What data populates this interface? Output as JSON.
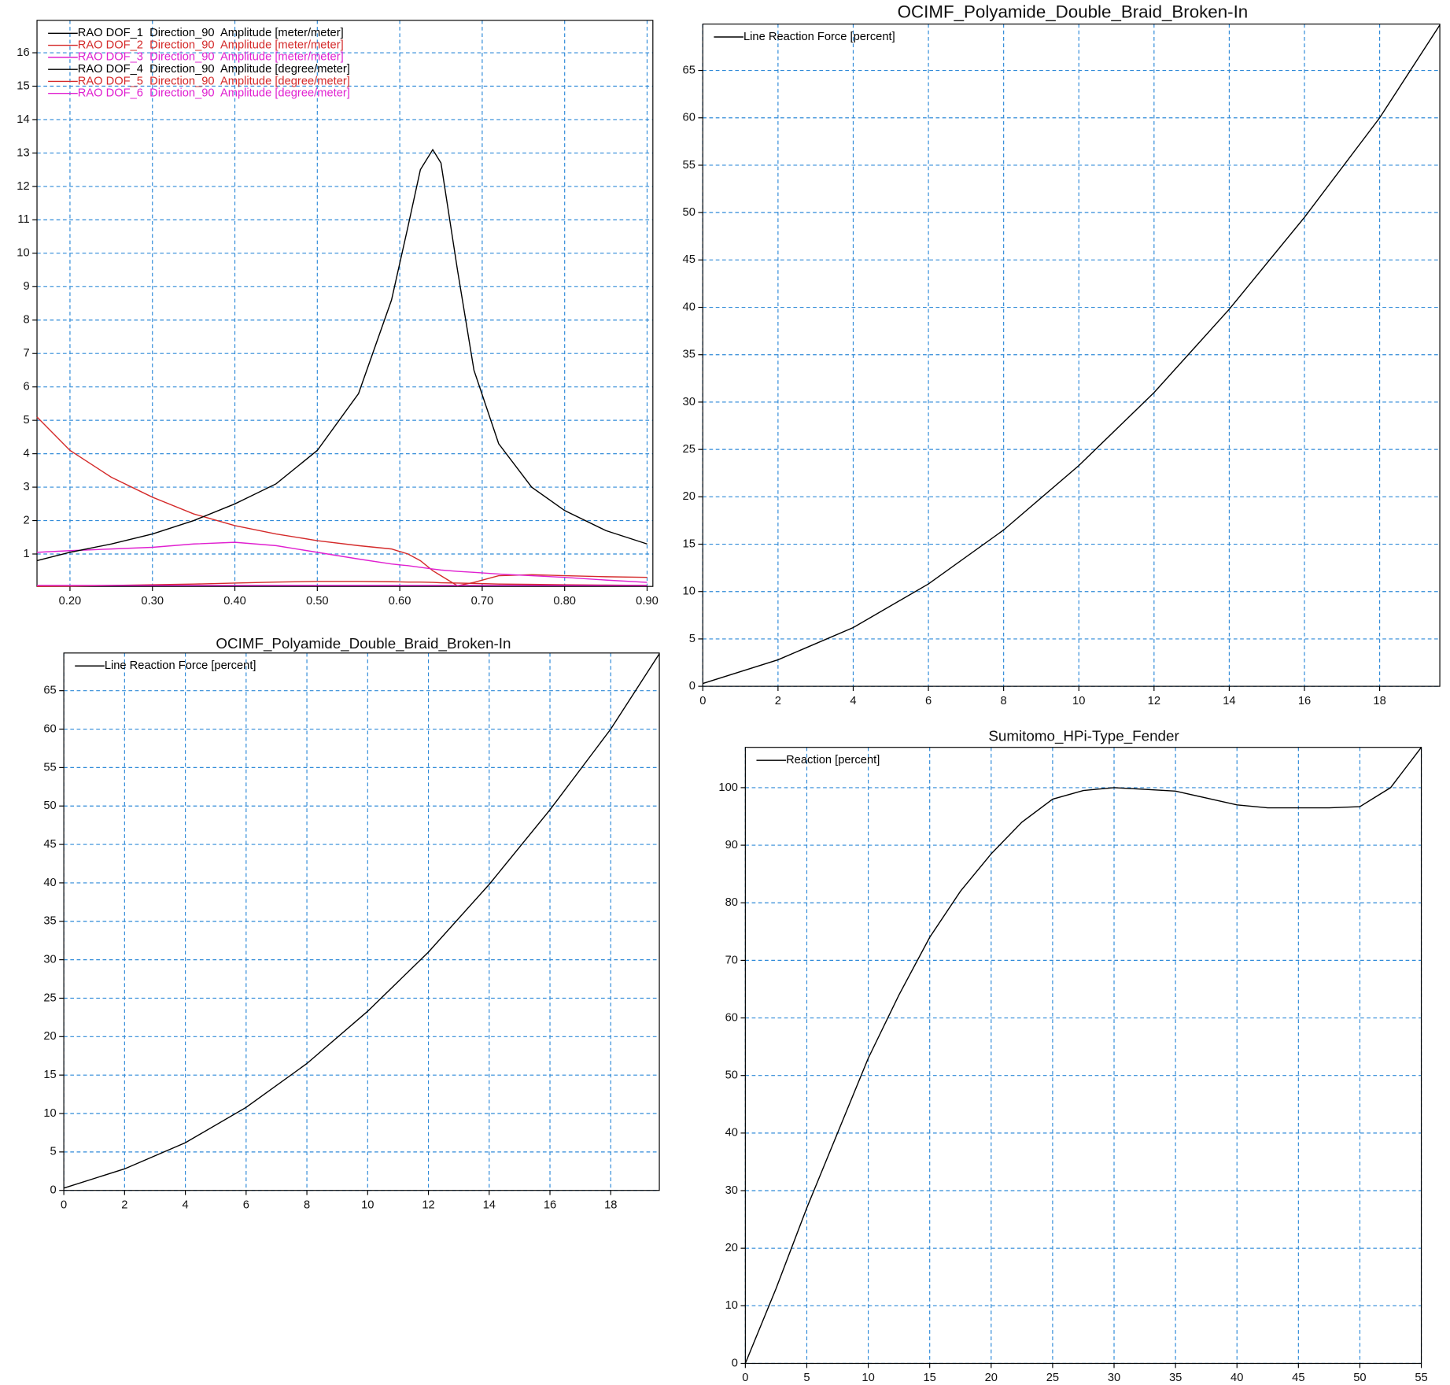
{
  "chart_data": [
    {
      "type": "line",
      "x": [
        0.16,
        0.2,
        0.25,
        0.3,
        0.35,
        0.4,
        0.45,
        0.5,
        0.55,
        0.59,
        0.61,
        0.625,
        0.64,
        0.65,
        0.67,
        0.69,
        0.72,
        0.76,
        0.8,
        0.85,
        0.9
      ],
      "series": [
        {
          "name": "RAO DOF_1  Direction_90  Amplitude [meter/meter]",
          "color": "#000000",
          "values": [
            0.04,
            0.04,
            0.04,
            0.04,
            0.04,
            0.04,
            0.04,
            0.04,
            0.04,
            0.04,
            0.04,
            0.04,
            0.04,
            0.04,
            0.04,
            0.04,
            0.04,
            0.04,
            0.04,
            0.04,
            0.04
          ]
        },
        {
          "name": "RAO DOF_2  Direction_90  Amplitude [meter/meter]",
          "color": "#d42a2a",
          "values": [
            5.1,
            4.1,
            3.3,
            2.7,
            2.2,
            1.85,
            1.6,
            1.4,
            1.25,
            1.15,
            1.0,
            0.8,
            0.5,
            0.35,
            0.05,
            0.15,
            0.35,
            0.38,
            0.35,
            0.32,
            0.3
          ]
        },
        {
          "name": "RAO DOF_3  Direction_90  Amplitude [meter/meter]",
          "color": "#e020d0",
          "values": [
            1.05,
            1.1,
            1.15,
            1.2,
            1.3,
            1.35,
            1.25,
            1.05,
            0.85,
            0.7,
            0.65,
            0.6,
            0.55,
            0.52,
            0.48,
            0.45,
            0.4,
            0.35,
            0.3,
            0.22,
            0.15
          ]
        },
        {
          "name": "RAO DOF_4  Direction_90  Amplitude [degree/meter]",
          "color": "#000000",
          "values": [
            0.8,
            1.05,
            1.3,
            1.6,
            2.0,
            2.5,
            3.1,
            4.1,
            5.8,
            8.6,
            10.8,
            12.5,
            13.1,
            12.7,
            9.5,
            6.5,
            4.3,
            3.0,
            2.3,
            1.7,
            1.3
          ]
        },
        {
          "name": "RAO DOF_5  Direction_90  Amplitude [degree/meter]",
          "color": "#d42a2a",
          "values": [
            0.03,
            0.04,
            0.06,
            0.08,
            0.1,
            0.13,
            0.16,
            0.18,
            0.18,
            0.17,
            0.16,
            0.16,
            0.15,
            0.14,
            0.13,
            0.12,
            0.1,
            0.09,
            0.08,
            0.07,
            0.06
          ]
        },
        {
          "name": "RAO DOF_6  Direction_90  Amplitude [degree/meter]",
          "color": "#e020d0",
          "values": [
            0.06,
            0.06,
            0.06,
            0.06,
            0.06,
            0.06,
            0.06,
            0.06,
            0.06,
            0.06,
            0.06,
            0.06,
            0.06,
            0.06,
            0.06,
            0.06,
            0.06,
            0.06,
            0.06,
            0.06,
            0.06
          ]
        }
      ],
      "xlim": [
        0.16,
        0.907
      ],
      "ylim": [
        0.03,
        16.97
      ],
      "xticks": [
        {
          "value": 0.2,
          "label": "0.20"
        },
        {
          "value": 0.3,
          "label": "0.30"
        },
        {
          "value": 0.4,
          "label": "0.40"
        },
        {
          "value": 0.5,
          "label": "0.50"
        },
        {
          "value": 0.6,
          "label": "0.60"
        },
        {
          "value": 0.7,
          "label": "0.70"
        },
        {
          "value": 0.8,
          "label": "0.80"
        },
        {
          "value": 0.9,
          "label": "0.90"
        }
      ],
      "yticks": [
        1,
        2,
        3,
        4,
        5,
        6,
        7,
        8,
        9,
        10,
        11,
        12,
        13,
        14,
        15,
        16
      ],
      "grid": true,
      "legend": "upper left"
    },
    {
      "type": "line",
      "title": "OCIMF_Polyamide_Double_Braid_Broken-In",
      "x": [
        0,
        2,
        4,
        6,
        8,
        10,
        12,
        14,
        16,
        18,
        19.6
      ],
      "series": [
        {
          "name": "Line Reaction Force [percent]",
          "color": "#000000",
          "values": [
            0.3,
            2.8,
            6.2,
            10.8,
            16.5,
            23.3,
            31,
            39.8,
            49.5,
            60,
            69.8
          ]
        }
      ],
      "xlim": [
        0,
        19.6
      ],
      "ylim": [
        0,
        69.9
      ],
      "xticks": [
        0,
        2,
        4,
        6,
        8,
        10,
        12,
        14,
        16,
        18
      ],
      "yticks": [
        0,
        5,
        10,
        15,
        20,
        25,
        30,
        35,
        40,
        45,
        50,
        55,
        60,
        65
      ],
      "grid": true,
      "legend": "upper left"
    },
    {
      "type": "line",
      "title": "OCIMF_Polyamide_Double_Braid_Broken-In",
      "x": [
        0,
        2,
        4,
        6,
        8,
        10,
        12,
        14,
        16,
        18,
        19.6
      ],
      "series": [
        {
          "name": "Line Reaction Force [percent]",
          "color": "#000000",
          "values": [
            0.3,
            2.8,
            6.2,
            10.8,
            16.5,
            23.3,
            31,
            39.8,
            49.5,
            60,
            69.8
          ]
        }
      ],
      "xlim": [
        0,
        19.6
      ],
      "ylim": [
        0,
        69.9
      ],
      "xticks": [
        0,
        2,
        4,
        6,
        8,
        10,
        12,
        14,
        16,
        18
      ],
      "yticks": [
        0,
        5,
        10,
        15,
        20,
        25,
        30,
        35,
        40,
        45,
        50,
        55,
        60,
        65
      ],
      "grid": true,
      "legend": "upper left"
    },
    {
      "type": "line",
      "title": "Sumitomo_HPi-Type_Fender",
      "x": [
        0,
        2.5,
        5,
        7.5,
        10,
        12.5,
        15,
        17.5,
        20,
        22.5,
        25,
        27.5,
        30,
        32.5,
        35,
        37.5,
        40,
        42.5,
        45,
        47.5,
        50,
        52.5,
        55
      ],
      "series": [
        {
          "name": "Reaction [percent]",
          "color": "#000000",
          "values": [
            0,
            13,
            27,
            40,
            53,
            64,
            74,
            82,
            88.5,
            94,
            98,
            99.5,
            100,
            99.7,
            99.4,
            98.2,
            97,
            96.5,
            96.5,
            96.5,
            96.7,
            100,
            107
          ]
        }
      ],
      "xlim": [
        0,
        55
      ],
      "ylim": [
        0,
        107
      ],
      "xticks": [
        0,
        5,
        10,
        15,
        20,
        25,
        30,
        35,
        40,
        45,
        50,
        55
      ],
      "yticks": [
        0,
        10,
        20,
        30,
        40,
        50,
        60,
        70,
        80,
        90,
        100
      ],
      "grid": true,
      "legend": "upper left"
    }
  ]
}
